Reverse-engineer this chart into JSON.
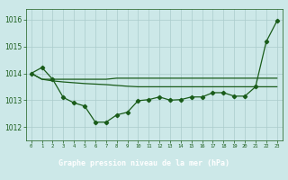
{
  "title": "Graphe pression niveau de la mer (hPa)",
  "bg_color": "#cce8e8",
  "grid_color": "#aacccc",
  "line_color": "#1a5c1a",
  "label_bg": "#2a6e2a",
  "label_fg": "#ffffff",
  "xlim": [
    -0.5,
    23.5
  ],
  "ylim": [
    1011.5,
    1016.4
  ],
  "yticks": [
    1012,
    1013,
    1014,
    1015,
    1016
  ],
  "xticks": [
    0,
    1,
    2,
    3,
    4,
    5,
    6,
    7,
    8,
    9,
    10,
    11,
    12,
    13,
    14,
    15,
    16,
    17,
    18,
    19,
    20,
    21,
    22,
    23
  ],
  "s1_x": [
    0,
    1,
    2,
    3,
    4,
    5,
    6,
    7,
    8,
    9,
    10,
    11,
    12,
    13,
    14,
    15,
    16,
    17,
    18,
    19,
    20,
    21,
    22,
    23
  ],
  "s1_y": [
    1014.0,
    1014.22,
    1013.78,
    1013.1,
    1012.9,
    1012.78,
    1012.18,
    1012.18,
    1012.45,
    1012.55,
    1012.98,
    1013.02,
    1013.12,
    1013.0,
    1013.02,
    1013.12,
    1013.12,
    1013.28,
    1013.28,
    1013.15,
    1013.15,
    1013.5,
    1015.18,
    1015.95
  ],
  "s2_x": [
    0,
    1,
    2,
    3,
    4,
    5,
    6,
    7,
    8,
    9,
    10,
    11,
    12,
    13,
    14,
    15,
    16,
    17,
    18,
    19,
    20,
    21,
    22,
    23
  ],
  "s2_y": [
    1014.0,
    1013.78,
    1013.78,
    1013.78,
    1013.78,
    1013.78,
    1013.78,
    1013.78,
    1013.82,
    1013.82,
    1013.82,
    1013.82,
    1013.82,
    1013.82,
    1013.82,
    1013.82,
    1013.82,
    1013.82,
    1013.82,
    1013.82,
    1013.82,
    1013.82,
    1013.82,
    1013.82
  ],
  "s3_x": [
    0,
    1,
    2,
    3,
    4,
    5,
    6,
    7,
    8,
    9,
    10,
    11,
    12,
    13,
    14,
    15,
    16,
    17,
    18,
    19,
    20,
    21,
    22,
    23
  ],
  "s3_y": [
    1014.0,
    1013.78,
    1013.72,
    1013.68,
    1013.65,
    1013.62,
    1013.6,
    1013.58,
    1013.55,
    1013.52,
    1013.5,
    1013.5,
    1013.5,
    1013.5,
    1013.5,
    1013.5,
    1013.5,
    1013.5,
    1013.5,
    1013.5,
    1013.5,
    1013.5,
    1013.5,
    1013.5
  ]
}
